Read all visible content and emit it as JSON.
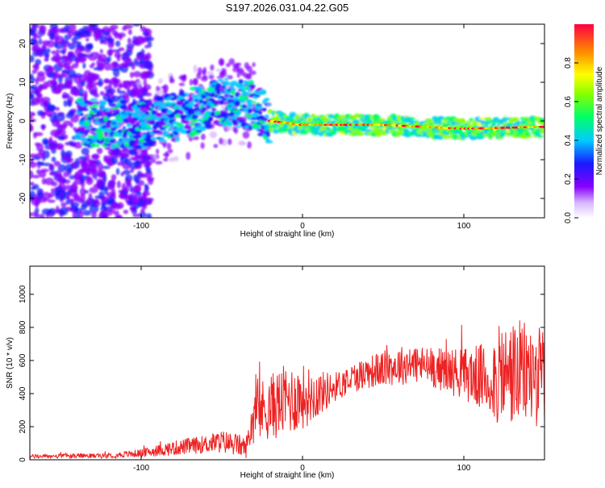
{
  "title": "S197.2026.031.04.22.G05",
  "chart_data": [
    {
      "type": "heatmap",
      "xlabel": "Height of straight line (km)",
      "ylabel": "Frequency (Hz)",
      "xlim": [
        -169,
        150
      ],
      "ylim": [
        -25,
        25
      ],
      "xticks": [
        -100,
        0,
        100
      ],
      "yticks": [
        -20,
        -10,
        0,
        10,
        20
      ],
      "colorbar": {
        "label": "Normalized spectral amplitude",
        "range": [
          0,
          1
        ],
        "ticks": [
          0.0,
          0.2,
          0.4,
          0.6,
          0.8
        ]
      },
      "ridge": {
        "description_points_x": [
          -150,
          -100,
          -70,
          -50,
          -30,
          -20,
          0,
          50,
          100,
          150
        ],
        "frequency_hz": [
          0,
          -1,
          2,
          5,
          4,
          0,
          -1,
          -1,
          -2,
          -1.5
        ]
      }
    },
    {
      "type": "line",
      "xlabel": "Height of straight line (km)",
      "ylabel": "SNR (10 * v/v)",
      "xlim": [
        -169,
        150
      ],
      "ylim": [
        0,
        1170
      ],
      "xticks": [
        -100,
        0,
        100
      ],
      "yticks": [
        0,
        200,
        400,
        600,
        800,
        1000
      ],
      "series": [
        {
          "name": "SNR",
          "color": "#ee2222",
          "envelope": {
            "x": [
              -169,
              -120,
              -100,
              -80,
              -60,
              -50,
              -40,
              -35,
              -30,
              -20,
              -10,
              0,
              10,
              20,
              30,
              40,
              50,
              60,
              70,
              80,
              90,
              100,
              110,
              115,
              120,
              130,
              140,
              150
            ],
            "center": [
              20,
              25,
              40,
              70,
              95,
              110,
              90,
              70,
              280,
              320,
              360,
              380,
              400,
              440,
              490,
              530,
              550,
              570,
              580,
              560,
              540,
              520,
              500,
              480,
              500,
              520,
              520,
              500
            ],
            "amplitude": [
              12,
              15,
              25,
              45,
              55,
              70,
              70,
              60,
              180,
              200,
              220,
              200,
              140,
              90,
              90,
              100,
              110,
              120,
              120,
              120,
              140,
              160,
              200,
              230,
              300,
              330,
              320,
              300
            ]
          }
        }
      ]
    }
  ]
}
